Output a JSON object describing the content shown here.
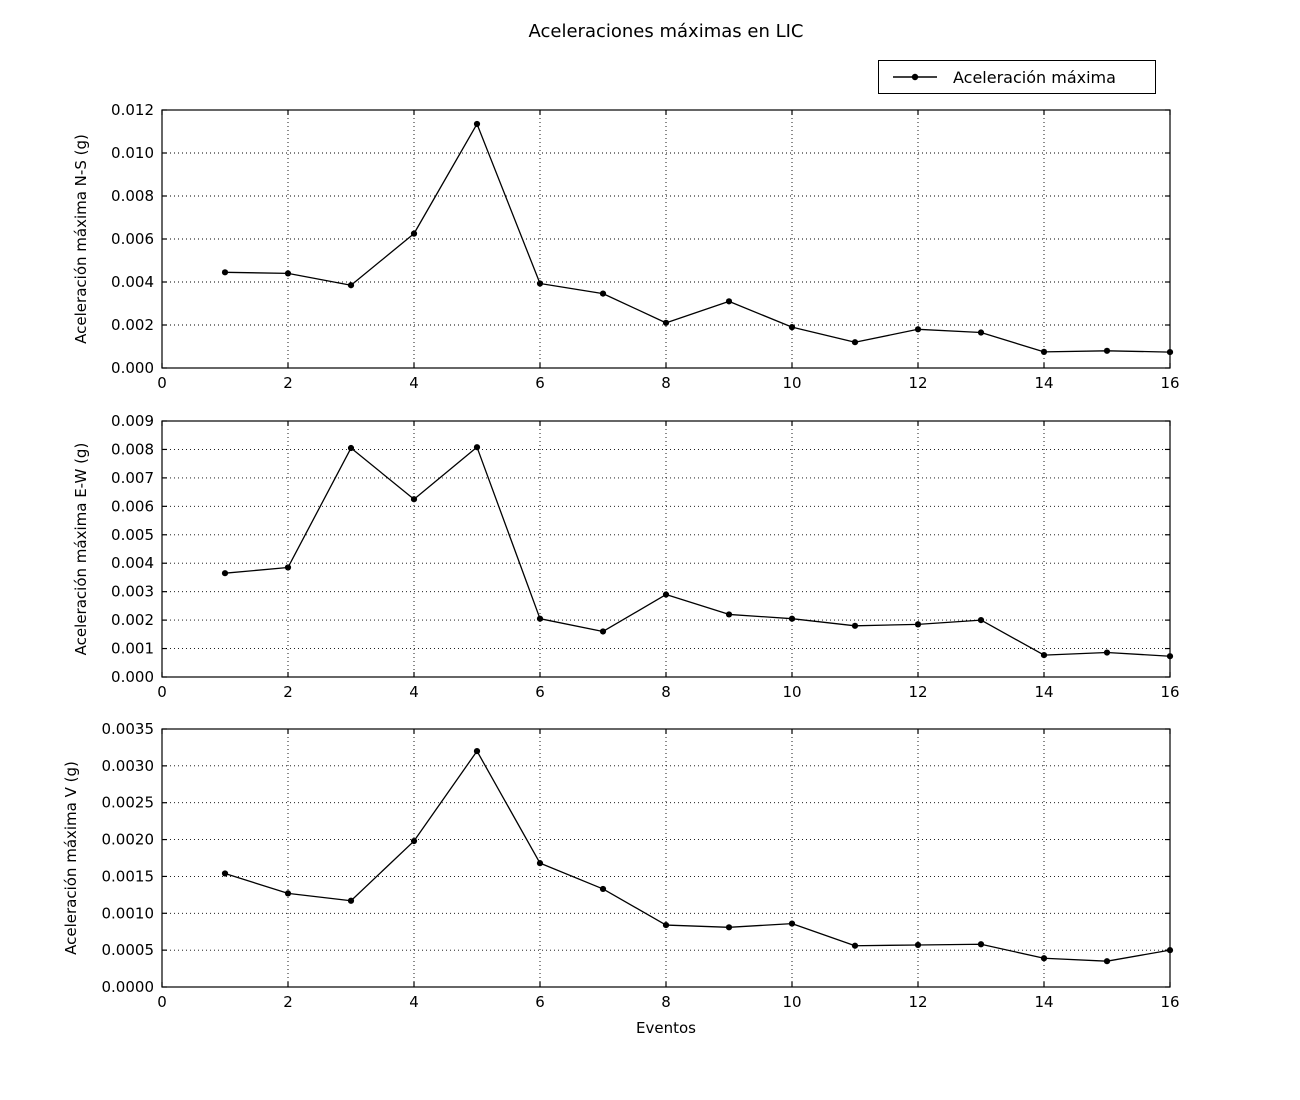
{
  "figure": {
    "title": "Aceleraciones máximas en LIC",
    "xlabel": "Eventos",
    "legend": {
      "label": "Aceleración máxima"
    },
    "colors": {
      "line": "#000000",
      "marker": "#000000",
      "grid": "#000000",
      "background": "#ffffff",
      "spine": "#000000"
    }
  },
  "chart_data": [
    {
      "type": "line",
      "title": "",
      "ylabel": "Aceleración máxima N-S (g)",
      "xlabel": "",
      "x": [
        1,
        2,
        3,
        4,
        5,
        6,
        7,
        8,
        9,
        10,
        11,
        12,
        13,
        14,
        15,
        16
      ],
      "series": [
        {
          "name": "Aceleración máxima",
          "values": [
            0.00445,
            0.0044,
            0.00385,
            0.00625,
            0.01135,
            0.00393,
            0.00346,
            0.0021,
            0.0031,
            0.0019,
            0.0012,
            0.0018,
            0.00165,
            0.00075,
            0.0008,
            0.00074
          ]
        }
      ],
      "xlim": [
        0,
        16
      ],
      "ylim": [
        0,
        0.012
      ],
      "xticks": [
        0,
        2,
        4,
        6,
        8,
        10,
        12,
        14,
        16
      ],
      "xtick_labels": [
        "0",
        "2",
        "4",
        "6",
        "8",
        "10",
        "12",
        "14",
        "16"
      ],
      "yticks": [
        0,
        0.002,
        0.004,
        0.006,
        0.008,
        0.01,
        0.012
      ],
      "ytick_labels": [
        "0.000",
        "0.002",
        "0.004",
        "0.006",
        "0.008",
        "0.010",
        "0.012"
      ],
      "grid": true,
      "grid_style": "dotted",
      "legend_position": "upper right (figure)",
      "marker": "point"
    },
    {
      "type": "line",
      "title": "",
      "ylabel": "Aceleración máxima E-W (g)",
      "xlabel": "",
      "x": [
        1,
        2,
        3,
        4,
        5,
        6,
        7,
        8,
        9,
        10,
        11,
        12,
        13,
        14,
        15,
        16
      ],
      "series": [
        {
          "name": "Aceleración máxima",
          "values": [
            0.00365,
            0.00385,
            0.00805,
            0.00625,
            0.00808,
            0.00205,
            0.0016,
            0.0029,
            0.0022,
            0.00205,
            0.0018,
            0.00185,
            0.002,
            0.00077,
            0.00086,
            0.00073
          ]
        }
      ],
      "xlim": [
        0,
        16
      ],
      "ylim": [
        0,
        0.009
      ],
      "xticks": [
        0,
        2,
        4,
        6,
        8,
        10,
        12,
        14,
        16
      ],
      "xtick_labels": [
        "0",
        "2",
        "4",
        "6",
        "8",
        "10",
        "12",
        "14",
        "16"
      ],
      "yticks": [
        0,
        0.001,
        0.002,
        0.003,
        0.004,
        0.005,
        0.006,
        0.007,
        0.008,
        0.009
      ],
      "ytick_labels": [
        "0.000",
        "0.001",
        "0.002",
        "0.003",
        "0.004",
        "0.005",
        "0.006",
        "0.007",
        "0.008",
        "0.009"
      ],
      "grid": true,
      "grid_style": "dotted",
      "legend_position": "none",
      "marker": "point"
    },
    {
      "type": "line",
      "title": "",
      "ylabel": "Aceleración máxima V (g)",
      "xlabel": "Eventos",
      "x": [
        1,
        2,
        3,
        4,
        5,
        6,
        7,
        8,
        9,
        10,
        11,
        12,
        13,
        14,
        15,
        16
      ],
      "series": [
        {
          "name": "Aceleración máxima",
          "values": [
            0.00154,
            0.00127,
            0.00117,
            0.00198,
            0.0032,
            0.00168,
            0.00133,
            0.00084,
            0.00081,
            0.00086,
            0.00056,
            0.00057,
            0.00058,
            0.00039,
            0.00035,
            0.0005
          ]
        }
      ],
      "xlim": [
        0,
        16
      ],
      "ylim": [
        0,
        0.0035
      ],
      "xticks": [
        0,
        2,
        4,
        6,
        8,
        10,
        12,
        14,
        16
      ],
      "xtick_labels": [
        "0",
        "2",
        "4",
        "6",
        "8",
        "10",
        "12",
        "14",
        "16"
      ],
      "yticks": [
        0,
        0.0005,
        0.001,
        0.0015,
        0.002,
        0.0025,
        0.003,
        0.0035
      ],
      "ytick_labels": [
        "0.0000",
        "0.0005",
        "0.0010",
        "0.0015",
        "0.0020",
        "0.0025",
        "0.0030",
        "0.0035"
      ],
      "grid": true,
      "grid_style": "dotted",
      "legend_position": "none",
      "marker": "point"
    }
  ]
}
